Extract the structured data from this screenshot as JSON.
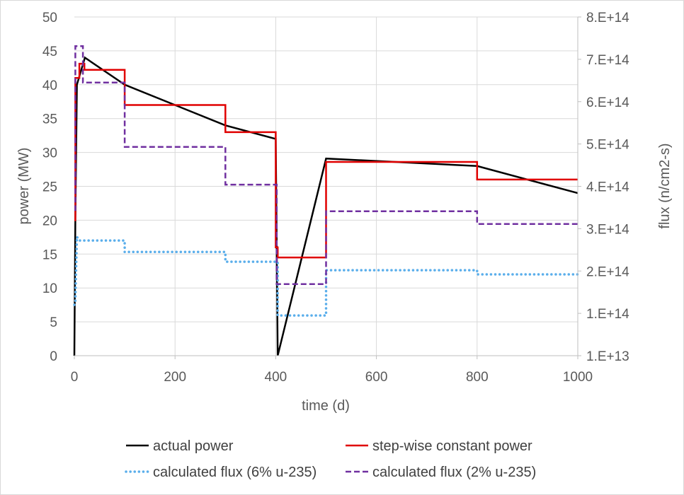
{
  "chart_data": {
    "type": "line",
    "title": "",
    "xlabel": "time (d)",
    "ylabel": "power (MW)",
    "y2label": "flux (n/cm2-s)",
    "xlim": [
      0,
      1000
    ],
    "ylim": [
      0,
      50
    ],
    "y2lim": [
      10000000000000.0,
      810000000000000.0
    ],
    "grid": true,
    "legend_position": "bottom",
    "x_ticks": [
      "0",
      "200",
      "400",
      "600",
      "800",
      "1000"
    ],
    "x_tick_values": [
      0,
      200,
      400,
      600,
      800,
      1000
    ],
    "y_ticks": [
      "0",
      "5",
      "10",
      "15",
      "20",
      "25",
      "30",
      "35",
      "40",
      "45",
      "50"
    ],
    "y_tick_values": [
      0,
      5,
      10,
      15,
      20,
      25,
      30,
      35,
      40,
      45,
      50
    ],
    "y2_ticks": [
      "1.E+13",
      "1.E+14",
      "2.E+14",
      "3.E+14",
      "4.E+14",
      "5.E+14",
      "6.E+14",
      "7.E+14",
      "8.E+14"
    ],
    "y2_tick_values": [
      10000000000000.0,
      110000000000000.0,
      210000000000000.0,
      310000000000000.0,
      410000000000000.0,
      510000000000000.0,
      610000000000000.0,
      710000000000000.0,
      810000000000000.0
    ],
    "series": [
      {
        "name": "actual power",
        "axis": "left",
        "color": "#000000",
        "style": "solid",
        "x": [
          0,
          2,
          5,
          21,
          100,
          300,
          400,
          404,
          500,
          800,
          1000
        ],
        "y": [
          0,
          20,
          40,
          44,
          40,
          34,
          32,
          0,
          29.1,
          28,
          24
        ]
      },
      {
        "name": "step-wise constant power",
        "axis": "left",
        "color": "#e00000",
        "style": "solid",
        "x": [
          0,
          2,
          2,
          5,
          5,
          10,
          10,
          20,
          20,
          100,
          100,
          300,
          300,
          400,
          400,
          404,
          404,
          500,
          500,
          800,
          800,
          1000
        ],
        "y": [
          20,
          20,
          41,
          41,
          41,
          41,
          43.1,
          43.1,
          42.2,
          42.2,
          37,
          37,
          33,
          33,
          16,
          16,
          14.5,
          14.5,
          28.6,
          28.6,
          26,
          26
        ]
      },
      {
        "name": "calculated flux (6% u-235)",
        "axis": "right",
        "color": "#5aaeeb",
        "style": "dotted",
        "x": [
          0,
          2,
          5,
          10,
          100,
          100,
          300,
          300,
          400,
          404,
          404,
          500,
          500,
          800,
          800,
          1000
        ],
        "y": [
          130000000000000.0,
          137000000000000.0,
          291000000000000.0,
          282000000000000.0,
          282000000000000.0,
          255000000000000.0,
          255000000000000.0,
          232000000000000.0,
          232000000000000.0,
          232000000000000.0,
          105000000000000.0,
          105000000000000.0,
          212000000000000.0,
          212000000000000.0,
          202000000000000.0,
          202000000000000.0
        ]
      },
      {
        "name": "calculated flux (2% u-235)",
        "axis": "right",
        "color": "#7030a0",
        "style": "dashed",
        "x": [
          0,
          2,
          2,
          17,
          17,
          100,
          100,
          300,
          300,
          402,
          402,
          500,
          500,
          800,
          800,
          1000
        ],
        "y": [
          354000000000000.0,
          354000000000000.0,
          741000000000000.0,
          741000000000000.0,
          655000000000000.0,
          655000000000000.0,
          503000000000000.0,
          503000000000000.0,
          414000000000000.0,
          414000000000000.0,
          179000000000000.0,
          179000000000000.0,
          351000000000000.0,
          351000000000000.0,
          321000000000000.0,
          321000000000000.0
        ]
      }
    ]
  }
}
